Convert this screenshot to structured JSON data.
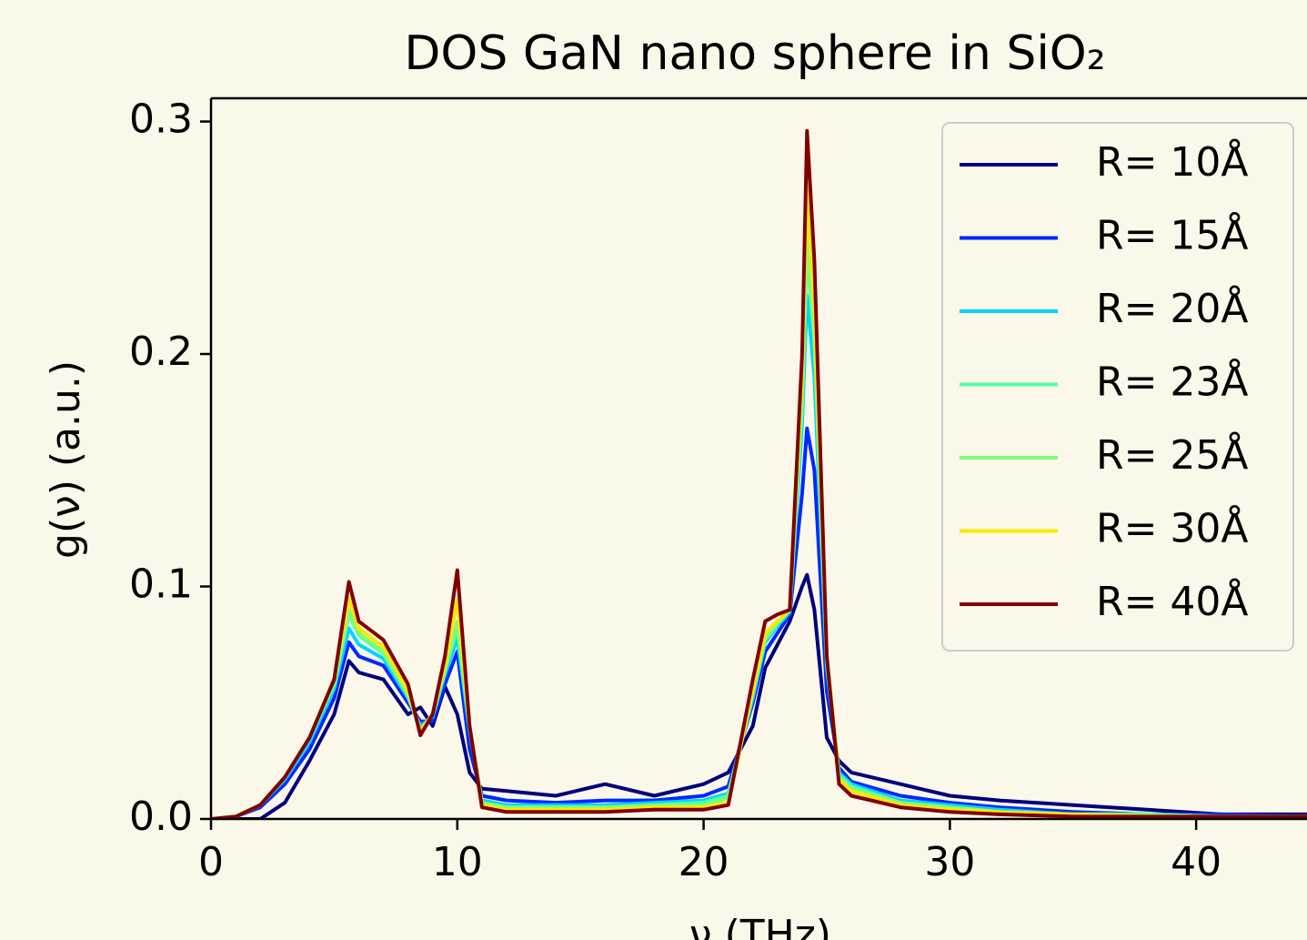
{
  "chart_data": {
    "type": "line",
    "title": "DOS GaN nano sphere in SiO₂",
    "xlabel": "ν (THz)",
    "ylabel": "g(ν) (a.u.)",
    "x": [
      0,
      1,
      2,
      3,
      4,
      5,
      5.6,
      6,
      7,
      8,
      8.5,
      9,
      9.5,
      10,
      10.5,
      11,
      12,
      14,
      16,
      18,
      20,
      21,
      22,
      22.5,
      23,
      23.5,
      24,
      24.2,
      24.5,
      25,
      25.5,
      26,
      28,
      30,
      32,
      35,
      38,
      41,
      44.5
    ],
    "series": [
      {
        "name": "R= 10Å",
        "color": "#00007f",
        "values": [
          0,
          0,
          0,
          0.007,
          0.025,
          0.045,
          0.068,
          0.063,
          0.06,
          0.045,
          0.048,
          0.04,
          0.057,
          0.045,
          0.02,
          0.013,
          0.012,
          0.01,
          0.015,
          0.01,
          0.015,
          0.02,
          0.04,
          0.065,
          0.075,
          0.085,
          0.1,
          0.105,
          0.09,
          0.035,
          0.025,
          0.02,
          0.015,
          0.01,
          0.008,
          0.006,
          0.004,
          0.002,
          0.002
        ]
      },
      {
        "name": "R= 15Å",
        "color": "#0028ff",
        "values": [
          0,
          0.001,
          0.005,
          0.015,
          0.03,
          0.052,
          0.076,
          0.07,
          0.066,
          0.05,
          0.042,
          0.042,
          0.058,
          0.072,
          0.03,
          0.01,
          0.008,
          0.007,
          0.008,
          0.008,
          0.01,
          0.014,
          0.05,
          0.072,
          0.08,
          0.088,
          0.14,
          0.168,
          0.15,
          0.055,
          0.022,
          0.016,
          0.01,
          0.007,
          0.005,
          0.003,
          0.002,
          0.002,
          0.001
        ]
      },
      {
        "name": "R= 20Å",
        "color": "#00d4ff",
        "values": [
          0,
          0.001,
          0.006,
          0.017,
          0.033,
          0.056,
          0.082,
          0.075,
          0.069,
          0.052,
          0.04,
          0.044,
          0.062,
          0.078,
          0.038,
          0.008,
          0.006,
          0.006,
          0.006,
          0.007,
          0.008,
          0.011,
          0.052,
          0.076,
          0.083,
          0.089,
          0.17,
          0.225,
          0.19,
          0.065,
          0.02,
          0.015,
          0.008,
          0.006,
          0.004,
          0.002,
          0.002,
          0.001,
          0.001
        ]
      },
      {
        "name": "R= 23Å",
        "color": "#53ffa3",
        "values": [
          0,
          0.001,
          0.006,
          0.018,
          0.035,
          0.058,
          0.088,
          0.079,
          0.071,
          0.053,
          0.038,
          0.045,
          0.064,
          0.082,
          0.04,
          0.007,
          0.005,
          0.005,
          0.005,
          0.006,
          0.007,
          0.01,
          0.054,
          0.077,
          0.084,
          0.09,
          0.178,
          0.245,
          0.205,
          0.068,
          0.019,
          0.014,
          0.007,
          0.005,
          0.003,
          0.002,
          0.002,
          0.001,
          0.001
        ]
      },
      {
        "name": "R= 25Å",
        "color": "#7dff7a",
        "values": [
          0,
          0.001,
          0.006,
          0.018,
          0.035,
          0.058,
          0.09,
          0.08,
          0.072,
          0.054,
          0.038,
          0.045,
          0.064,
          0.085,
          0.04,
          0.007,
          0.005,
          0.005,
          0.005,
          0.006,
          0.006,
          0.009,
          0.055,
          0.078,
          0.084,
          0.09,
          0.18,
          0.252,
          0.21,
          0.07,
          0.018,
          0.013,
          0.007,
          0.005,
          0.003,
          0.002,
          0.002,
          0.001,
          0.001
        ]
      },
      {
        "name": "R= 30Å",
        "color": "#ffe600",
        "values": [
          0,
          0.001,
          0.006,
          0.018,
          0.035,
          0.06,
          0.095,
          0.082,
          0.074,
          0.055,
          0.038,
          0.045,
          0.066,
          0.094,
          0.04,
          0.006,
          0.004,
          0.004,
          0.004,
          0.005,
          0.005,
          0.007,
          0.055,
          0.08,
          0.085,
          0.09,
          0.19,
          0.272,
          0.22,
          0.07,
          0.017,
          0.012,
          0.006,
          0.004,
          0.003,
          0.002,
          0.001,
          0.001,
          0.001
        ]
      },
      {
        "name": "R= 40Å",
        "color": "#800000",
        "values": [
          0,
          0.001,
          0.006,
          0.018,
          0.035,
          0.06,
          0.102,
          0.085,
          0.077,
          0.058,
          0.036,
          0.045,
          0.07,
          0.107,
          0.04,
          0.005,
          0.003,
          0.003,
          0.003,
          0.004,
          0.004,
          0.006,
          0.06,
          0.085,
          0.088,
          0.09,
          0.2,
          0.296,
          0.24,
          0.07,
          0.015,
          0.01,
          0.005,
          0.003,
          0.002,
          0.001,
          0.001,
          0.001,
          0.001
        ]
      }
    ],
    "xlim": [
      0,
      44.5
    ],
    "ylim": [
      0,
      0.31
    ],
    "xticks": [
      0,
      10,
      20,
      30,
      40
    ],
    "yticks": [
      {
        "value": 0,
        "label": "0.0"
      },
      0.1,
      0.2,
      0.3
    ],
    "legend": "upper right"
  }
}
